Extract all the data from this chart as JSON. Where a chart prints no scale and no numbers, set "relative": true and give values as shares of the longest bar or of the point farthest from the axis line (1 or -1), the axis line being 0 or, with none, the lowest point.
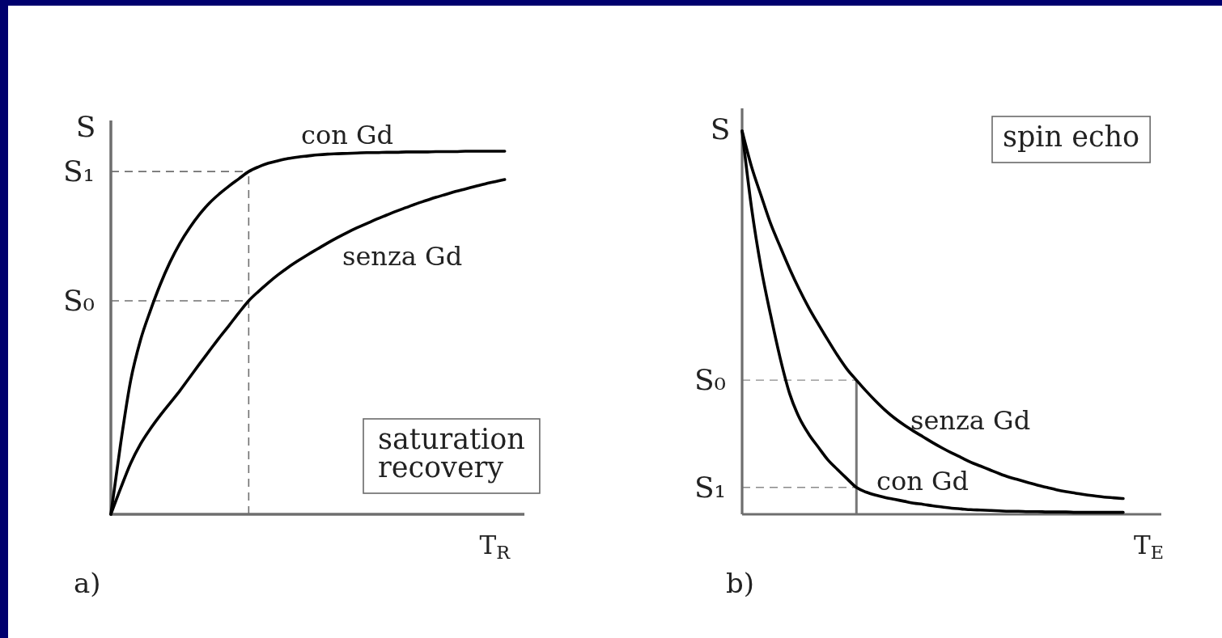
{
  "chart_data": [
    {
      "type": "line",
      "title": "a)",
      "xlabel": "T$_{R}$",
      "ylabel": "S",
      "relative": true,
      "categories": [
        null,
        null,
        null,
        null,
        null,
        null,
        null,
        null,
        null,
        null,
        null,
        null,
        null,
        null,
        null,
        null,
        null,
        null,
        null,
        null,
        null,
        null,
        null,
        null,
        null,
        null,
        null,
        null,
        null,
        null,
        null,
        null,
        null,
        null,
        null,
        null,
        null,
        null,
        null,
        null,
        null,
        null,
        null
      ],
      "series": [
        {
          "name": "con Gd",
          "color": "#000000",
          "values": [
            0,
            0.196,
            0.367,
            0.479,
            0.56,
            0.632,
            0.694,
            0.746,
            0.789,
            0.826,
            0.857,
            0.882,
            0.904,
            0.924,
            0.944,
            0.957,
            0.967,
            0.974,
            0.98,
            0.984,
            0.987,
            0.99,
            0.992,
            0.993,
            0.994,
            0.995,
            0.996,
            0.996,
            0.997,
            0.997,
            0.998,
            0.998,
            0.998,
            0.999,
            0.999,
            0.999,
            1,
            1,
            1,
            1,
            1,
            null,
            null
          ]
        },
        {
          "name": "senza Gd",
          "color": "#000000",
          "values": [
            0,
            0.072,
            0.14,
            0.193,
            0.235,
            0.272,
            0.306,
            0.34,
            0.377,
            0.414,
            0.45,
            0.486,
            0.52,
            0.555,
            0.588,
            0.614,
            0.638,
            0.66,
            0.68,
            0.698,
            0.715,
            0.731,
            0.747,
            0.762,
            0.776,
            0.789,
            0.801,
            0.813,
            0.824,
            0.835,
            0.845,
            0.855,
            0.864,
            0.873,
            0.881,
            0.889,
            0.896,
            0.903,
            0.91,
            0.916,
            0.922,
            null,
            null
          ]
        }
      ],
      "ref_lines": [
        {
          "axis": "y",
          "value": 0.944,
          "label": "S₁",
          "color": "#707070",
          "line_style": "dashed"
        },
        {
          "axis": "y",
          "value": 0.588,
          "label": "S₀",
          "color": "#707070",
          "line_style": "dashed"
        }
      ],
      "annotations": [
        "saturation recovery"
      ]
    },
    {
      "type": "line",
      "title": "b)",
      "xlabel": "T$_{E}$",
      "ylabel": "S",
      "relative": true,
      "categories": [
        null,
        null,
        null,
        null,
        null,
        null,
        null,
        null,
        null,
        null,
        null,
        null,
        null,
        null,
        null,
        null,
        null,
        null,
        null,
        null,
        null,
        null,
        null,
        null,
        null,
        null,
        null,
        null,
        null,
        null,
        null,
        null,
        null,
        null,
        null,
        null,
        null,
        null,
        null,
        null,
        null,
        null,
        null,
        null,
        null
      ],
      "series": [
        {
          "name": "con Gd",
          "color": "#000000",
          "values": [
            1,
            0.798,
            0.642,
            0.519,
            0.407,
            0.314,
            0.252,
            0.209,
            0.175,
            0.142,
            0.117,
            0.093,
            0.07,
            0.058,
            0.05,
            0.044,
            0.039,
            0.034,
            0.029,
            0.026,
            0.022,
            0.019,
            0.016,
            0.014,
            0.012,
            0.011,
            0.01,
            0.009,
            0.008,
            0.008,
            0.007,
            0.007,
            0.006,
            0.006,
            0.006,
            0.005,
            0.005,
            0.005,
            0.005,
            0.005,
            0.005,
            null,
            null,
            null,
            null
          ]
        },
        {
          "name": "senza Gd",
          "color": "#000000",
          "values": [
            1,
            0.906,
            0.831,
            0.758,
            0.698,
            0.64,
            0.587,
            0.539,
            0.496,
            0.455,
            0.415,
            0.379,
            0.35,
            0.322,
            0.296,
            0.272,
            0.251,
            0.233,
            0.217,
            0.202,
            0.187,
            0.173,
            0.16,
            0.148,
            0.136,
            0.126,
            0.116,
            0.106,
            0.097,
            0.09,
            0.083,
            0.076,
            0.07,
            0.064,
            0.059,
            0.055,
            0.051,
            0.048,
            0.045,
            0.043,
            0.041,
            null,
            null,
            null,
            null
          ]
        }
      ],
      "ref_lines": [
        {
          "axis": "y",
          "value": 0.35,
          "label": "S₀",
          "color": "#8a8a8a",
          "line_style": "dashed"
        },
        {
          "axis": "y",
          "value": 0.07,
          "label": "S₁",
          "color": "#8a8a8a",
          "line_style": "dashed"
        }
      ],
      "annotations": [
        "spin echo"
      ]
    }
  ]
}
